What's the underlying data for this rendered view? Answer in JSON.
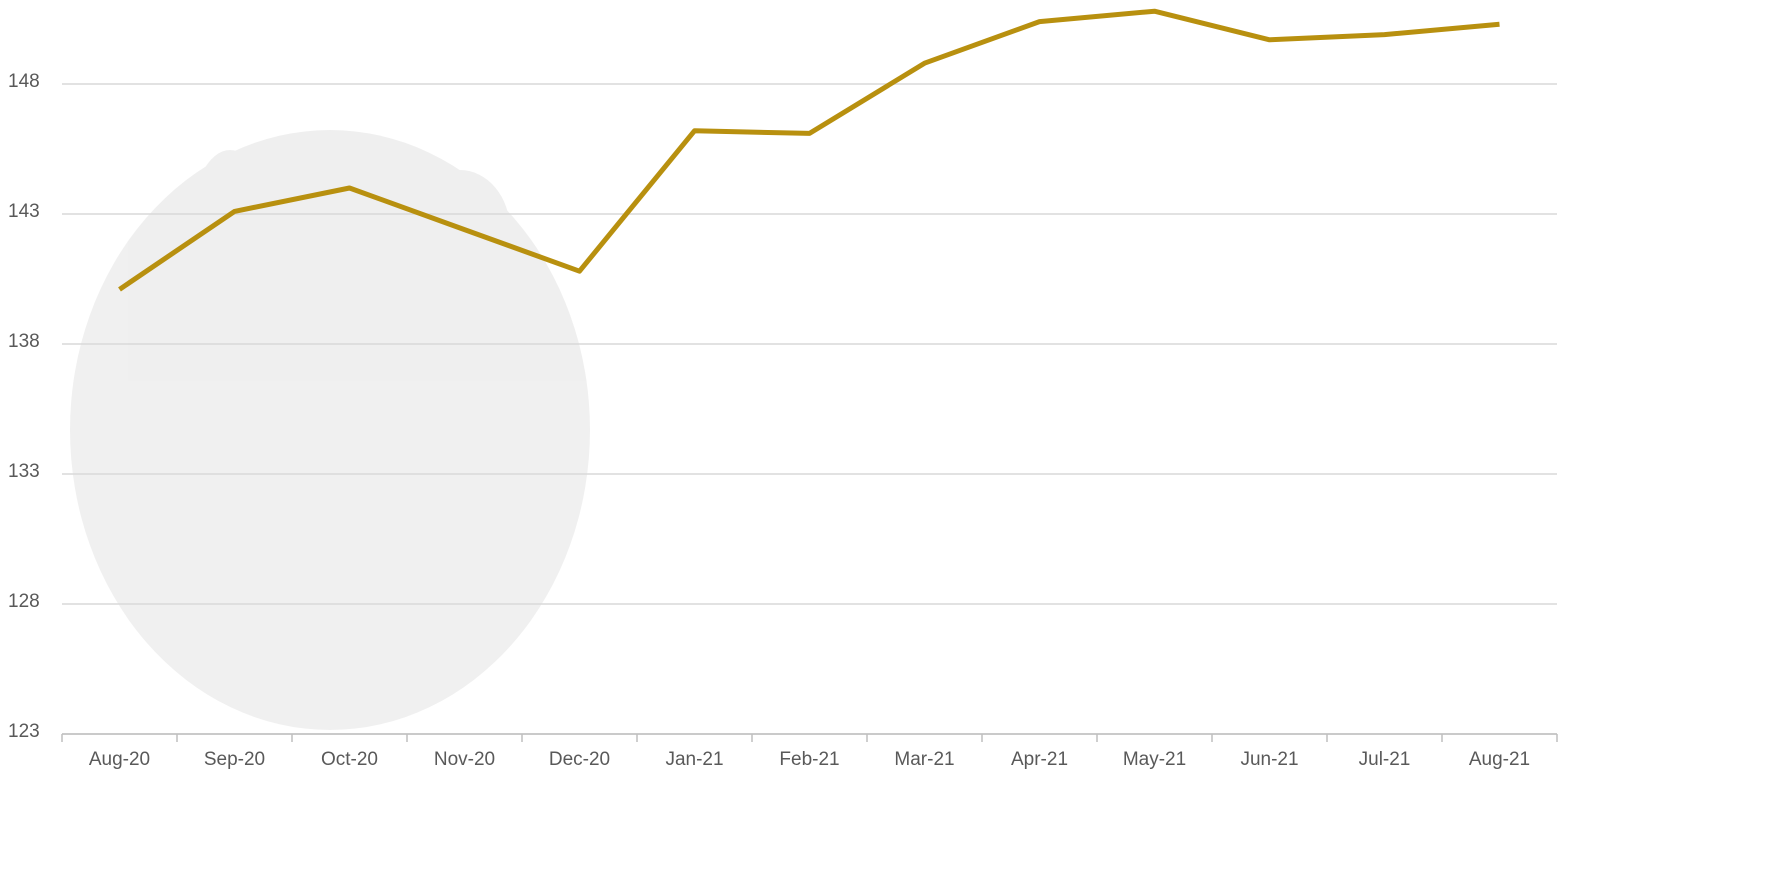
{
  "chart_data": {
    "type": "line",
    "categories": [
      "Aug-20",
      "Sep-20",
      "Oct-20",
      "Nov-20",
      "Dec-20",
      "Jan-21",
      "Feb-21",
      "Mar-21",
      "Apr-21",
      "May-21",
      "Jun-21",
      "Jul-21",
      "Aug-21"
    ],
    "series": [
      {
        "color": "#b8900f",
        "values": [
          140.1,
          143.1,
          144.0,
          142.4,
          140.8,
          146.2,
          146.1,
          148.8,
          150.4,
          150.8,
          149.7,
          149.9,
          150.3
        ]
      }
    ],
    "ylim": [
      123,
      151.2
    ],
    "yticks": [
      123,
      128,
      133,
      138,
      143,
      148
    ],
    "grid": true
  }
}
